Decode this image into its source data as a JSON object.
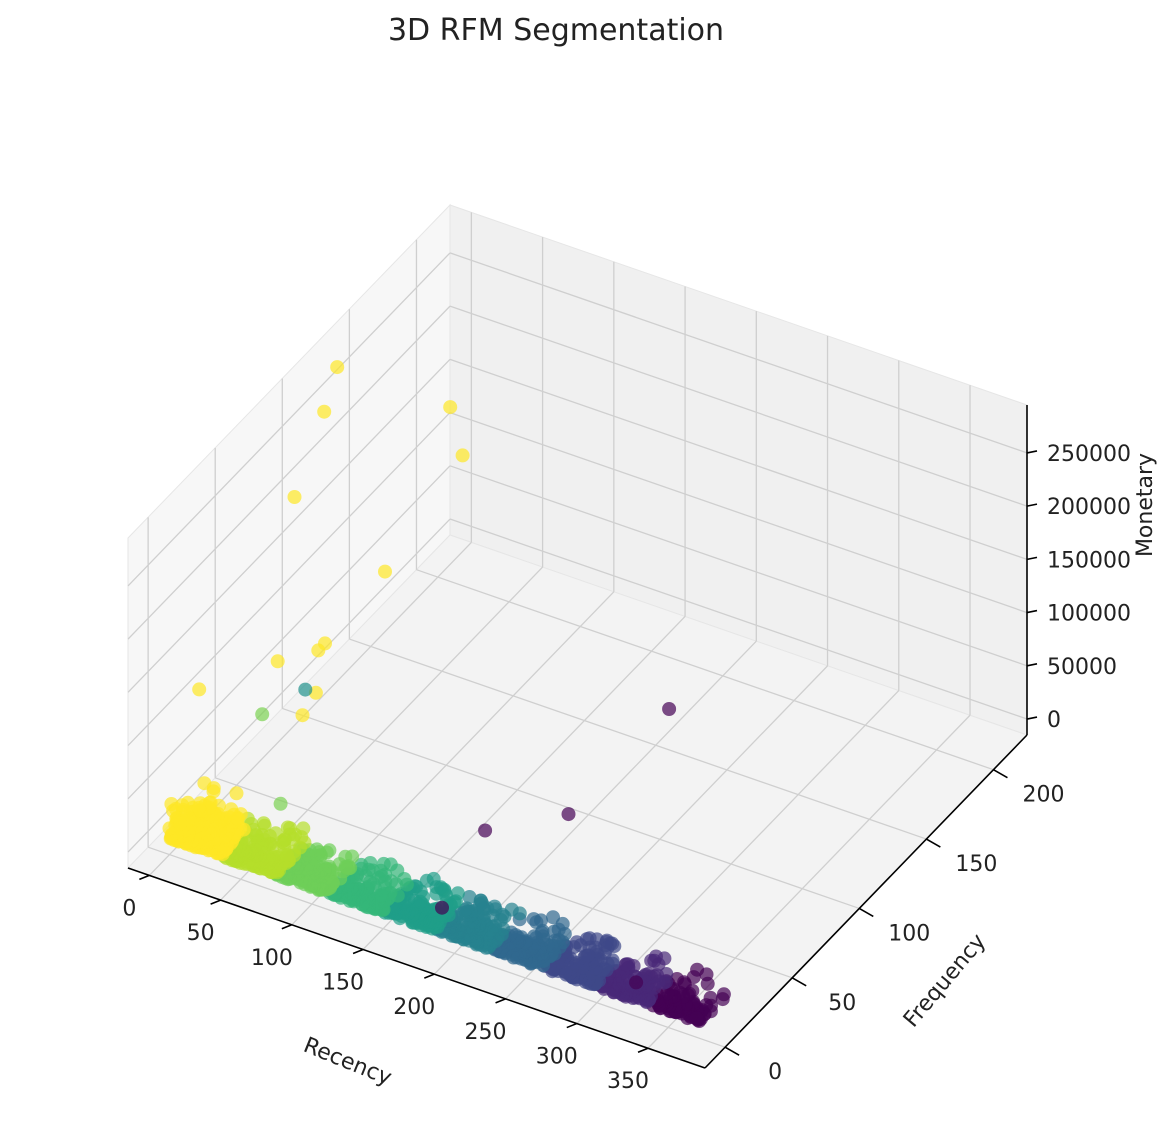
{
  "chart_data": {
    "type": "scatter",
    "projection": "3d",
    "title": "3D RFM Segmentation",
    "xlabel": "Recency",
    "ylabel": "Frequency",
    "zlabel": "Monetary",
    "colormap": "viridis",
    "xlim": [
      -15,
      390
    ],
    "ylim": [
      -15,
      225
    ],
    "zlim": [
      -15000,
      295000
    ],
    "xticks": [
      0,
      50,
      100,
      150,
      200,
      250,
      300,
      350
    ],
    "yticks": [
      0,
      50,
      100,
      150,
      200
    ],
    "zticks": [
      0,
      50000,
      100000,
      150000,
      200000,
      250000
    ],
    "grid": true,
    "highlighted_points": [
      {
        "recency": 0,
        "frequency": 125,
        "monetary": 280000,
        "segment_color": "#fde725"
      },
      {
        "recency": 5,
        "frequency": 110,
        "monetary": 260000,
        "segment_color": "#fde725"
      },
      {
        "recency": 3,
        "frequency": 90,
        "monetary": 205000,
        "segment_color": "#fde725"
      },
      {
        "recency": 4,
        "frequency": 205,
        "monetary": 140000,
        "segment_color": "#fde725"
      },
      {
        "recency": 8,
        "frequency": 210,
        "monetary": 90000,
        "segment_color": "#fde725"
      },
      {
        "recency": 2,
        "frequency": 20,
        "monetary": 115000,
        "segment_color": "#fde725"
      },
      {
        "recency": 10,
        "frequency": 70,
        "monetary": 80000,
        "segment_color": "#fde725"
      },
      {
        "recency": 15,
        "frequency": 95,
        "monetary": 60000,
        "segment_color": "#fde725"
      },
      {
        "recency": 15,
        "frequency": 100,
        "monetary": 60000,
        "segment_color": "#fde725"
      },
      {
        "recency": 10,
        "frequency": 150,
        "monetary": 60000,
        "segment_color": "#fde725"
      },
      {
        "recency": 18,
        "frequency": 90,
        "monetary": 28000,
        "segment_color": "#fde725"
      },
      {
        "recency": 18,
        "frequency": 80,
        "monetary": 20000,
        "segment_color": "#fde725"
      },
      {
        "recency": 18,
        "frequency": 50,
        "monetary": 60000,
        "segment_color": "#7ad151"
      },
      {
        "recency": 20,
        "frequency": 80,
        "monetary": 45000,
        "segment_color": "#21918c"
      },
      {
        "recency": 45,
        "frequency": 35,
        "monetary": 8000,
        "segment_color": "#7ad151"
      },
      {
        "recency": 165,
        "frequency": 60,
        "monetary": 6000,
        "segment_color": "#440154"
      },
      {
        "recency": 200,
        "frequency": 85,
        "monetary": 5000,
        "segment_color": "#440154"
      },
      {
        "recency": 200,
        "frequency": 160,
        "monetary": 6000,
        "segment_color": "#440154"
      },
      {
        "recency": 370,
        "frequency": 0,
        "monetary": 3000,
        "segment_color": "#440154"
      },
      {
        "recency": 180,
        "frequency": 12,
        "monetary": 3000,
        "segment_color": "#440154"
      },
      {
        "recency": 320,
        "frequency": 8,
        "monetary": 3000,
        "segment_color": "#440154"
      }
    ],
    "bulk_density": {
      "recency_range": [
        0,
        373
      ],
      "frequency_range": [
        0,
        30
      ],
      "monetary_range": [
        0,
        25000
      ],
      "color_by": "recency",
      "colors_low_to_high_recency": [
        "#fde725",
        "#b5de2b",
        "#6ece58",
        "#35b779",
        "#1f9e89",
        "#26828e",
        "#31688e",
        "#3e4989",
        "#482878",
        "#440154"
      ]
    }
  }
}
